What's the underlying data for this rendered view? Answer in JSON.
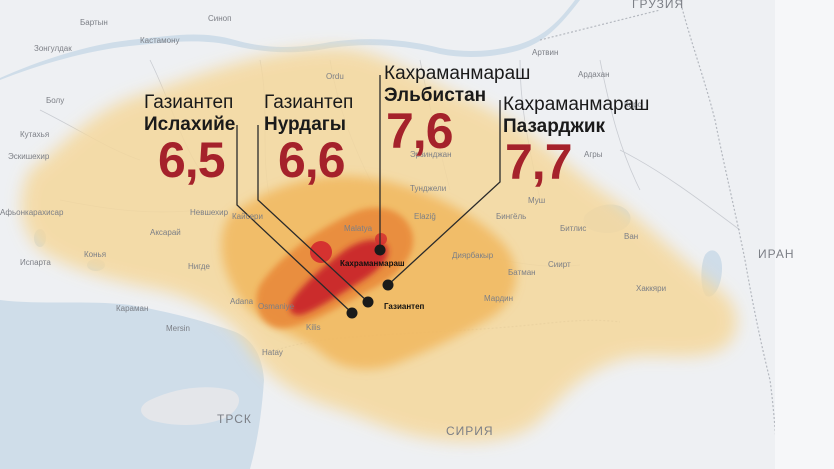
{
  "colors": {
    "sea": "#cfdde9",
    "land": "#eef0f3",
    "heat_outer": "#f5d89c",
    "heat_mid": "#f1b85f",
    "heat_core": "#e98a3a",
    "heat_max": "#c8242a",
    "magnitude": "#a5222b"
  },
  "countries": {
    "iran": "ИРАН",
    "syria": "СИРИЯ",
    "trnc": "ТРСК",
    "georgia": "ГРУЗИЯ"
  },
  "places": [
    {
      "id": "bartyn",
      "name": "Бартын"
    },
    {
      "id": "sinop",
      "name": "Синоп"
    },
    {
      "id": "kastamonu",
      "name": "Кастамону"
    },
    {
      "id": "zongouldak",
      "name": "Зонгулдак"
    },
    {
      "id": "boli",
      "name": "Болу"
    },
    {
      "id": "eskishehir",
      "name": "Эскишехир"
    },
    {
      "id": "kutahya",
      "name": "Кутахья"
    },
    {
      "id": "afyonkarahisar",
      "name": "Афьонкарахисар"
    },
    {
      "id": "isparta",
      "name": "Испарта"
    },
    {
      "id": "konya",
      "name": "Конья"
    },
    {
      "id": "karaman",
      "name": "Караман"
    },
    {
      "id": "aksaray",
      "name": "Аксарай"
    },
    {
      "id": "nevshehir",
      "name": "Невшехир"
    },
    {
      "id": "kayseri",
      "name": "Кайсери"
    },
    {
      "id": "nigde",
      "name": "Нигде"
    },
    {
      "id": "adana",
      "name": "Adana"
    },
    {
      "id": "mersin",
      "name": "Mersin"
    },
    {
      "id": "osmaniye",
      "name": "Osmaniye"
    },
    {
      "id": "kilis",
      "name": "Kilis"
    },
    {
      "id": "hatay",
      "name": "Hatay"
    },
    {
      "id": "ordu",
      "name": "Ordu"
    },
    {
      "id": "malatya",
      "name": "Malatya"
    },
    {
      "id": "erzindzhan",
      "name": "Эрзинджан"
    },
    {
      "id": "tundzheli",
      "name": "Тунджели"
    },
    {
      "id": "elazig",
      "name": "Elaziğ"
    },
    {
      "id": "diyarbakyr",
      "name": "Диярбакыр"
    },
    {
      "id": "batman",
      "name": "Батман"
    },
    {
      "id": "mardin",
      "name": "Мардин"
    },
    {
      "id": "siirt",
      "name": "Сиирт"
    },
    {
      "id": "bitlis",
      "name": "Битлис"
    },
    {
      "id": "van",
      "name": "Ван"
    },
    {
      "id": "hakkari",
      "name": "Хаккяри"
    },
    {
      "id": "agry",
      "name": "Агры"
    },
    {
      "id": "kars",
      "name": "Карс"
    },
    {
      "id": "ardahan",
      "name": "Ардахан"
    },
    {
      "id": "artvin",
      "name": "Артвин"
    },
    {
      "id": "mush",
      "name": "Муш"
    },
    {
      "id": "bingol",
      "name": "Бингёль"
    }
  ],
  "epicenter_labels": {
    "kahramanmarash": "Кахраманмараш",
    "gaziantep": "Газиантеп"
  },
  "callouts": [
    {
      "id": "islahiye",
      "city": "Газиантеп",
      "district": "Ислахийе",
      "magnitude": "6,5"
    },
    {
      "id": "nurdagy",
      "city": "Газиантеп",
      "district": "Нурдагы",
      "magnitude": "6,6"
    },
    {
      "id": "elbistan",
      "city": "Кахраманмараш",
      "district": "Эльбистан",
      "magnitude": "7,6"
    },
    {
      "id": "pazardzhik",
      "city": "Кахраманмараш",
      "district": "Пазарджик",
      "magnitude": "7,7"
    }
  ]
}
